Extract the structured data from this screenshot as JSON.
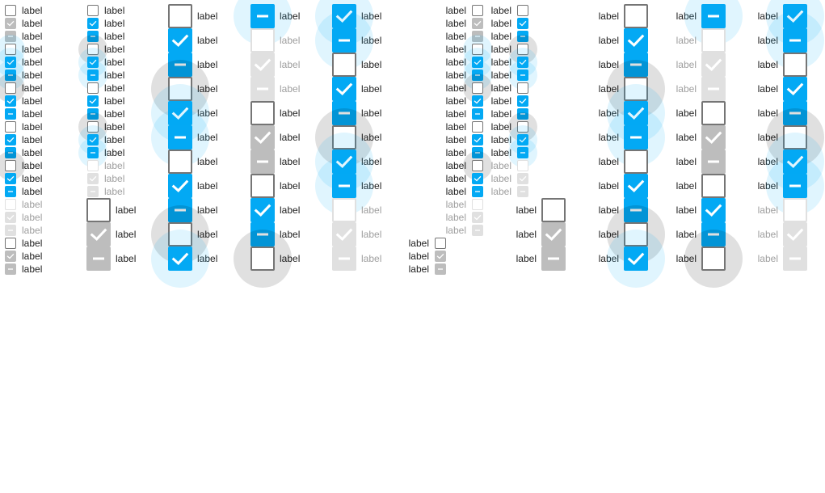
{
  "label_text": "label",
  "colors": {
    "accent": "#03a9f4",
    "accent_pressed": "#0288d1",
    "border": "#757575",
    "disabled": "#bdbdbd",
    "disabled_light": "#e0e0e0",
    "text": "#212121",
    "text_disabled": "#9e9e9e"
  },
  "icons": {
    "checked": "check-icon",
    "indeterminate": "minus-icon"
  },
  "sizes": [
    "small",
    "medium",
    "large"
  ],
  "states": [
    "unchecked",
    "checked",
    "indeterminate",
    "pressed",
    "disabled"
  ],
  "groups": [
    {
      "name": "small-ltr-a",
      "size": "small",
      "direction": "ltr",
      "items": [
        {
          "state": "unchecked"
        },
        {
          "state": "checked",
          "disabled": true
        },
        {
          "state": "indeterminate",
          "disabled": true
        },
        {
          "state": "unchecked",
          "focus": true
        },
        {
          "state": "checked",
          "focus": true
        },
        {
          "state": "indeterminate",
          "focus": true
        },
        {
          "state": "unchecked",
          "hover": true
        },
        {
          "state": "checked"
        },
        {
          "state": "indeterminate"
        },
        {
          "state": "unchecked"
        },
        {
          "state": "checked"
        },
        {
          "state": "indeterminate"
        },
        {
          "state": "unchecked",
          "hover": true
        },
        {
          "state": "checked"
        },
        {
          "state": "indeterminate"
        },
        {
          "state": "unchecked",
          "disabled": true,
          "light": true
        },
        {
          "state": "checked",
          "disabled": true,
          "light": true
        },
        {
          "state": "indeterminate",
          "disabled": true,
          "light": true
        },
        {
          "state": "unchecked"
        },
        {
          "state": "checked",
          "disabled": true
        },
        {
          "state": "indeterminate",
          "disabled": true
        }
      ]
    },
    {
      "name": "small-ltr-b",
      "size": "small",
      "direction": "ltr",
      "items": [
        {
          "state": "unchecked"
        },
        {
          "state": "checked"
        },
        {
          "state": "indeterminate"
        },
        {
          "state": "unchecked",
          "hover": true
        },
        {
          "state": "checked",
          "focus": true
        },
        {
          "state": "indeterminate",
          "focus": true
        },
        {
          "state": "unchecked"
        },
        {
          "state": "checked"
        },
        {
          "state": "indeterminate"
        },
        {
          "state": "unchecked",
          "hover": true
        },
        {
          "state": "checked",
          "focus": true
        },
        {
          "state": "indeterminate",
          "focus": true
        },
        {
          "state": "unchecked",
          "disabled": true,
          "light": true
        },
        {
          "state": "checked",
          "disabled": true,
          "light": true
        },
        {
          "state": "indeterminate",
          "disabled": true,
          "light": true
        }
      ]
    },
    {
      "name": "small-rtl-a",
      "size": "small",
      "direction": "rtl",
      "items": [
        {
          "state": "unchecked"
        },
        {
          "state": "checked",
          "disabled": true
        },
        {
          "state": "indeterminate",
          "disabled": true
        },
        {
          "state": "unchecked",
          "focus": true
        },
        {
          "state": "checked",
          "focus": true
        },
        {
          "state": "indeterminate",
          "focus": true
        },
        {
          "state": "unchecked",
          "hover": true
        },
        {
          "state": "checked"
        },
        {
          "state": "indeterminate"
        },
        {
          "state": "unchecked"
        },
        {
          "state": "checked"
        },
        {
          "state": "indeterminate"
        },
        {
          "state": "unchecked",
          "hover": true
        },
        {
          "state": "checked"
        },
        {
          "state": "indeterminate"
        },
        {
          "state": "unchecked",
          "disabled": true,
          "light": true
        },
        {
          "state": "checked",
          "disabled": true,
          "light": true
        },
        {
          "state": "indeterminate",
          "disabled": true,
          "light": true
        }
      ]
    },
    {
      "name": "small-rtl-b",
      "size": "small",
      "direction": "rtl",
      "items": [
        {
          "state": "unchecked"
        },
        {
          "state": "checked"
        },
        {
          "state": "indeterminate"
        },
        {
          "state": "unchecked",
          "hover": true
        },
        {
          "state": "checked",
          "focus": true
        },
        {
          "state": "indeterminate",
          "focus": true
        },
        {
          "state": "unchecked"
        },
        {
          "state": "checked"
        },
        {
          "state": "indeterminate"
        },
        {
          "state": "unchecked",
          "hover": true
        },
        {
          "state": "checked",
          "focus": true
        },
        {
          "state": "indeterminate",
          "focus": true
        },
        {
          "state": "unchecked",
          "disabled": true,
          "light": true
        },
        {
          "state": "checked",
          "disabled": true,
          "light": true
        },
        {
          "state": "indeterminate",
          "disabled": true,
          "light": true
        }
      ]
    },
    {
      "name": "small-rtl-c",
      "size": "small",
      "direction": "rtl",
      "items": [
        {
          "state": "unchecked"
        },
        {
          "state": "checked",
          "disabled": true
        },
        {
          "state": "indeterminate",
          "disabled": true
        }
      ]
    }
  ],
  "large_columns": [
    {
      "name": "large-ltr-1",
      "direction": "ltr",
      "items": [
        {
          "state": "unchecked"
        },
        {
          "state": "checked",
          "disabled": true
        },
        {
          "state": "indeterminate",
          "disabled": true
        }
      ]
    },
    {
      "name": "large-ltr-2",
      "direction": "ltr",
      "items": [
        {
          "state": "unchecked"
        },
        {
          "state": "checked"
        },
        {
          "state": "indeterminate"
        },
        {
          "state": "unchecked",
          "hover": true
        },
        {
          "state": "checked",
          "focus": true
        },
        {
          "state": "indeterminate",
          "focus": true
        },
        {
          "state": "unchecked"
        },
        {
          "state": "checked"
        },
        {
          "state": "indeterminate"
        },
        {
          "state": "unchecked",
          "hover": true
        },
        {
          "state": "checked",
          "focus": true
        }
      ]
    },
    {
      "name": "large-ltr-3",
      "direction": "ltr",
      "items": [
        {
          "state": "indeterminate",
          "focus": true
        },
        {
          "state": "unchecked",
          "disabled": true,
          "light": true
        },
        {
          "state": "checked",
          "disabled": true,
          "light": true
        },
        {
          "state": "indeterminate",
          "disabled": true,
          "light": true
        },
        {
          "state": "unchecked"
        },
        {
          "state": "checked",
          "disabled": true
        },
        {
          "state": "indeterminate",
          "disabled": true
        },
        {
          "state": "unchecked"
        },
        {
          "state": "checked"
        },
        {
          "state": "indeterminate"
        },
        {
          "state": "unchecked",
          "hover": true
        }
      ]
    },
    {
      "name": "large-ltr-4",
      "direction": "ltr",
      "items": [
        {
          "state": "checked",
          "focus": true
        },
        {
          "state": "indeterminate",
          "focus": true
        },
        {
          "state": "unchecked"
        },
        {
          "state": "checked"
        },
        {
          "state": "indeterminate"
        },
        {
          "state": "unchecked",
          "hover": true
        },
        {
          "state": "checked",
          "focus": true
        },
        {
          "state": "indeterminate",
          "focus": true
        },
        {
          "state": "unchecked",
          "disabled": true,
          "light": true
        },
        {
          "state": "checked",
          "disabled": true,
          "light": true
        },
        {
          "state": "indeterminate",
          "disabled": true,
          "light": true
        }
      ]
    },
    {
      "name": "large-rtl-1",
      "direction": "rtl",
      "items": [
        {
          "state": "unchecked"
        },
        {
          "state": "checked",
          "disabled": true
        },
        {
          "state": "indeterminate",
          "disabled": true
        }
      ]
    },
    {
      "name": "large-rtl-2",
      "direction": "rtl",
      "items": [
        {
          "state": "unchecked"
        },
        {
          "state": "checked"
        },
        {
          "state": "indeterminate"
        },
        {
          "state": "unchecked",
          "hover": true
        },
        {
          "state": "checked",
          "focus": true
        },
        {
          "state": "indeterminate",
          "focus": true
        },
        {
          "state": "unchecked"
        },
        {
          "state": "checked"
        },
        {
          "state": "indeterminate"
        },
        {
          "state": "unchecked",
          "hover": true
        },
        {
          "state": "checked",
          "focus": true
        }
      ]
    },
    {
      "name": "large-rtl-3",
      "direction": "rtl",
      "items": [
        {
          "state": "indeterminate",
          "focus": true
        },
        {
          "state": "unchecked",
          "disabled": true,
          "light": true
        },
        {
          "state": "checked",
          "disabled": true,
          "light": true
        },
        {
          "state": "indeterminate",
          "disabled": true,
          "light": true
        },
        {
          "state": "unchecked"
        },
        {
          "state": "checked",
          "disabled": true
        },
        {
          "state": "indeterminate",
          "disabled": true
        },
        {
          "state": "unchecked"
        },
        {
          "state": "checked"
        },
        {
          "state": "indeterminate"
        },
        {
          "state": "unchecked",
          "hover": true
        }
      ]
    },
    {
      "name": "large-rtl-4",
      "direction": "rtl",
      "items": [
        {
          "state": "checked",
          "focus": true
        },
        {
          "state": "indeterminate",
          "focus": true
        },
        {
          "state": "unchecked"
        },
        {
          "state": "checked"
        },
        {
          "state": "indeterminate"
        },
        {
          "state": "unchecked",
          "hover": true
        },
        {
          "state": "checked",
          "focus": true
        },
        {
          "state": "indeterminate",
          "focus": true
        },
        {
          "state": "unchecked",
          "disabled": true,
          "light": true
        },
        {
          "state": "checked",
          "disabled": true,
          "light": true
        },
        {
          "state": "indeterminate",
          "disabled": true,
          "light": true
        }
      ]
    }
  ]
}
